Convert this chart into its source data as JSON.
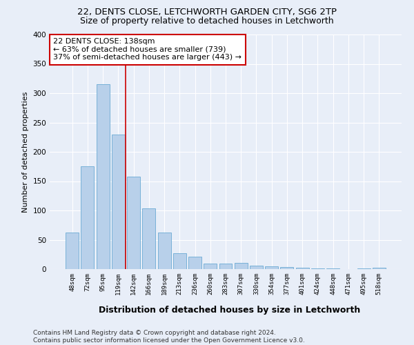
{
  "title1": "22, DENTS CLOSE, LETCHWORTH GARDEN CITY, SG6 2TP",
  "title2": "Size of property relative to detached houses in Letchworth",
  "xlabel": "Distribution of detached houses by size in Letchworth",
  "ylabel": "Number of detached properties",
  "categories": [
    "48sqm",
    "72sqm",
    "95sqm",
    "119sqm",
    "142sqm",
    "166sqm",
    "189sqm",
    "213sqm",
    "236sqm",
    "260sqm",
    "283sqm",
    "307sqm",
    "330sqm",
    "354sqm",
    "377sqm",
    "401sqm",
    "424sqm",
    "448sqm",
    "471sqm",
    "495sqm",
    "518sqm"
  ],
  "values": [
    62,
    175,
    315,
    230,
    158,
    104,
    62,
    27,
    21,
    10,
    10,
    11,
    6,
    5,
    4,
    2,
    1,
    1,
    0,
    1,
    2
  ],
  "bar_color": "#b8d0ea",
  "bar_edge_color": "#6aaad4",
  "background_color": "#e8eef8",
  "grid_color": "#ffffff",
  "vline_x": 3.5,
  "vline_color": "#cc0000",
  "annotation_text": "22 DENTS CLOSE: 138sqm\n← 63% of detached houses are smaller (739)\n37% of semi-detached houses are larger (443) →",
  "annotation_box_color": "white",
  "annotation_box_edge": "#cc0000",
  "ylim": [
    0,
    400
  ],
  "yticks": [
    0,
    50,
    100,
    150,
    200,
    250,
    300,
    350,
    400
  ],
  "footer": "Contains HM Land Registry data © Crown copyright and database right 2024.\nContains public sector information licensed under the Open Government Licence v3.0.",
  "title1_fontsize": 9.5,
  "title2_fontsize": 9,
  "xlabel_fontsize": 9,
  "ylabel_fontsize": 8,
  "annotation_fontsize": 8,
  "footer_fontsize": 6.5
}
